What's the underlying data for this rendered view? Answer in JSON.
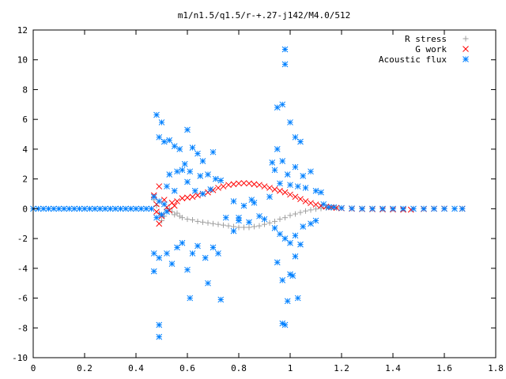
{
  "chart_data": {
    "type": "scatter",
    "title": "m1/n1.5/q1.5/r-+.27-j142/M4.0/512",
    "xlabel": "",
    "ylabel": "",
    "xlim": [
      0,
      1.8
    ],
    "ylim": [
      -10,
      12
    ],
    "xticks": [
      0,
      0.2,
      0.4,
      0.6,
      0.8,
      1,
      1.2,
      1.4,
      1.6,
      1.8
    ],
    "xtick_labels": [
      "0",
      "0.2",
      "0.4",
      "0.6",
      "0.8",
      "1",
      "1.2",
      "1.4",
      "1.6",
      "1.8"
    ],
    "yticks": [
      -10,
      -8,
      -6,
      -4,
      -2,
      0,
      2,
      4,
      6,
      8,
      10,
      12
    ],
    "ytick_labels": [
      "-10",
      "-8",
      "-6",
      "-4",
      "-2",
      "0",
      "2",
      "4",
      "6",
      "8",
      "10",
      "12"
    ],
    "grid": false,
    "legend_position": "top-right",
    "series": [
      {
        "name": "R stress",
        "marker": "plus",
        "color": "#a0a0a0",
        "points": [
          [
            0.47,
            0.6
          ],
          [
            0.48,
            0.2
          ],
          [
            0.49,
            -0.3
          ],
          [
            0.5,
            -0.8
          ],
          [
            0.51,
            -0.5
          ],
          [
            0.52,
            -0.1
          ],
          [
            0.53,
            0.0
          ],
          [
            0.54,
            -0.2
          ],
          [
            0.55,
            -0.4
          ],
          [
            0.56,
            -0.3
          ],
          [
            0.57,
            -0.5
          ],
          [
            0.58,
            -0.6
          ],
          [
            0.6,
            -0.7
          ],
          [
            0.62,
            -0.75
          ],
          [
            0.64,
            -0.85
          ],
          [
            0.66,
            -0.9
          ],
          [
            0.68,
            -0.95
          ],
          [
            0.7,
            -1.0
          ],
          [
            0.72,
            -1.05
          ],
          [
            0.74,
            -1.1
          ],
          [
            0.76,
            -1.15
          ],
          [
            0.78,
            -1.2
          ],
          [
            0.8,
            -1.25
          ],
          [
            0.82,
            -1.25
          ],
          [
            0.84,
            -1.25
          ],
          [
            0.86,
            -1.2
          ],
          [
            0.88,
            -1.15
          ],
          [
            0.9,
            -1.05
          ],
          [
            0.92,
            -0.95
          ],
          [
            0.94,
            -0.85
          ],
          [
            0.96,
            -0.7
          ],
          [
            0.98,
            -0.6
          ],
          [
            1.0,
            -0.45
          ],
          [
            1.02,
            -0.35
          ],
          [
            1.04,
            -0.25
          ],
          [
            1.06,
            -0.15
          ],
          [
            1.08,
            -0.08
          ],
          [
            1.1,
            -0.02
          ],
          [
            1.12,
            0.02
          ],
          [
            1.14,
            0.05
          ],
          [
            1.16,
            0.06
          ],
          [
            1.18,
            0.06
          ],
          [
            1.2,
            0.05
          ],
          [
            1.24,
            0.03
          ],
          [
            1.28,
            0.02
          ],
          [
            1.32,
            0.01
          ],
          [
            1.36,
            0.0
          ],
          [
            1.4,
            -0.01
          ],
          [
            1.44,
            -0.01
          ],
          [
            1.48,
            0.0
          ],
          [
            1.52,
            0.01
          ],
          [
            1.56,
            0.02
          ],
          [
            1.6,
            0.02
          ],
          [
            1.64,
            0.01
          ],
          [
            1.67,
            0.0
          ]
        ]
      },
      {
        "name": "G work",
        "marker": "cross",
        "color": "#ff0000",
        "points": [
          [
            0.47,
            0.9
          ],
          [
            0.48,
            0.3
          ],
          [
            0.48,
            -0.2
          ],
          [
            0.49,
            1.5
          ],
          [
            0.49,
            -1.0
          ],
          [
            0.5,
            -0.5
          ],
          [
            0.51,
            0.6
          ],
          [
            0.52,
            0.1
          ],
          [
            0.53,
            -0.1
          ],
          [
            0.54,
            0.4
          ],
          [
            0.55,
            0.2
          ],
          [
            0.56,
            0.5
          ],
          [
            0.58,
            0.7
          ],
          [
            0.6,
            0.75
          ],
          [
            0.62,
            0.8
          ],
          [
            0.64,
            0.9
          ],
          [
            0.66,
            1.0
          ],
          [
            0.68,
            1.1
          ],
          [
            0.7,
            1.25
          ],
          [
            0.72,
            1.4
          ],
          [
            0.74,
            1.5
          ],
          [
            0.76,
            1.6
          ],
          [
            0.78,
            1.65
          ],
          [
            0.8,
            1.7
          ],
          [
            0.82,
            1.72
          ],
          [
            0.84,
            1.7
          ],
          [
            0.86,
            1.65
          ],
          [
            0.88,
            1.6
          ],
          [
            0.9,
            1.5
          ],
          [
            0.92,
            1.4
          ],
          [
            0.94,
            1.3
          ],
          [
            0.96,
            1.2
          ],
          [
            0.98,
            1.1
          ],
          [
            1.0,
            0.95
          ],
          [
            1.02,
            0.8
          ],
          [
            1.04,
            0.65
          ],
          [
            1.06,
            0.5
          ],
          [
            1.08,
            0.38
          ],
          [
            1.1,
            0.28
          ],
          [
            1.12,
            0.2
          ],
          [
            1.14,
            0.14
          ],
          [
            1.16,
            0.1
          ],
          [
            1.18,
            0.06
          ],
          [
            1.2,
            0.03
          ],
          [
            1.24,
            0.0
          ],
          [
            1.28,
            -0.02
          ],
          [
            1.32,
            -0.03
          ],
          [
            1.36,
            -0.04
          ],
          [
            1.4,
            -0.05
          ],
          [
            1.44,
            -0.06
          ],
          [
            1.47,
            -0.06
          ],
          [
            1.52,
            -0.02
          ],
          [
            1.56,
            0.0
          ],
          [
            1.6,
            0.01
          ],
          [
            1.67,
            0.0
          ]
        ]
      },
      {
        "name": "Acoustic flux",
        "marker": "star",
        "color": "#0080ff",
        "points": [
          [
            0.0,
            0.0
          ],
          [
            0.02,
            0.0
          ],
          [
            0.04,
            0.0
          ],
          [
            0.06,
            0.0
          ],
          [
            0.08,
            0.0
          ],
          [
            0.1,
            0.0
          ],
          [
            0.12,
            0.0
          ],
          [
            0.14,
            0.0
          ],
          [
            0.16,
            0.0
          ],
          [
            0.18,
            0.0
          ],
          [
            0.2,
            0.0
          ],
          [
            0.22,
            0.0
          ],
          [
            0.24,
            0.0
          ],
          [
            0.26,
            0.0
          ],
          [
            0.28,
            0.0
          ],
          [
            0.3,
            0.0
          ],
          [
            0.32,
            0.0
          ],
          [
            0.34,
            0.0
          ],
          [
            0.36,
            0.0
          ],
          [
            0.38,
            0.0
          ],
          [
            0.4,
            0.0
          ],
          [
            0.42,
            0.0
          ],
          [
            0.44,
            0.0
          ],
          [
            0.46,
            0.0
          ],
          [
            0.48,
            6.3
          ],
          [
            0.5,
            5.8
          ],
          [
            0.49,
            4.8
          ],
          [
            0.51,
            4.5
          ],
          [
            0.53,
            4.6
          ],
          [
            0.55,
            4.2
          ],
          [
            0.57,
            4.0
          ],
          [
            0.6,
            5.3
          ],
          [
            0.62,
            4.1
          ],
          [
            0.64,
            3.7
          ],
          [
            0.59,
            3.0
          ],
          [
            0.56,
            2.5
          ],
          [
            0.53,
            2.3
          ],
          [
            0.58,
            2.6
          ],
          [
            0.61,
            2.5
          ],
          [
            0.65,
            2.2
          ],
          [
            0.68,
            2.3
          ],
          [
            0.66,
            3.2
          ],
          [
            0.71,
            2.0
          ],
          [
            0.73,
            1.9
          ],
          [
            0.7,
            3.8
          ],
          [
            0.52,
            1.5
          ],
          [
            0.55,
            1.2
          ],
          [
            0.6,
            1.8
          ],
          [
            0.63,
            1.2
          ],
          [
            0.66,
            1.0
          ],
          [
            0.69,
            1.3
          ],
          [
            0.47,
            0.8
          ],
          [
            0.48,
            -0.6
          ],
          [
            0.49,
            0.5
          ],
          [
            0.5,
            -0.4
          ],
          [
            0.51,
            0.3
          ],
          [
            0.52,
            -0.2
          ],
          [
            0.47,
            -3.0
          ],
          [
            0.47,
            -4.2
          ],
          [
            0.49,
            -3.3
          ],
          [
            0.52,
            -3.0
          ],
          [
            0.54,
            -3.7
          ],
          [
            0.56,
            -2.6
          ],
          [
            0.58,
            -2.3
          ],
          [
            0.6,
            -4.1
          ],
          [
            0.62,
            -3.0
          ],
          [
            0.64,
            -2.5
          ],
          [
            0.67,
            -3.3
          ],
          [
            0.7,
            -2.6
          ],
          [
            0.72,
            -3.0
          ],
          [
            0.68,
            -5.0
          ],
          [
            0.61,
            -6.0
          ],
          [
            0.73,
            -6.1
          ],
          [
            0.49,
            -7.8
          ],
          [
            0.49,
            -8.6
          ],
          [
            0.75,
            -0.6
          ],
          [
            0.78,
            0.5
          ],
          [
            0.8,
            -0.8
          ],
          [
            0.82,
            0.2
          ],
          [
            0.84,
            -0.9
          ],
          [
            0.86,
            0.4
          ],
          [
            0.88,
            -0.5
          ],
          [
            0.9,
            -0.7
          ],
          [
            0.92,
            0.8
          ],
          [
            0.78,
            -1.5
          ],
          [
            0.85,
            0.6
          ],
          [
            0.8,
            -0.6
          ],
          [
            0.95,
            4.0
          ],
          [
            0.97,
            3.2
          ],
          [
            0.94,
            2.6
          ],
          [
            0.93,
            3.1
          ],
          [
            0.99,
            2.3
          ],
          [
            1.02,
            2.8
          ],
          [
            1.05,
            2.2
          ],
          [
            1.08,
            2.5
          ],
          [
            0.96,
            1.7
          ],
          [
            1.0,
            1.6
          ],
          [
            1.03,
            1.5
          ],
          [
            1.06,
            1.4
          ],
          [
            1.1,
            1.2
          ],
          [
            1.12,
            1.1
          ],
          [
            0.95,
            6.8
          ],
          [
            0.97,
            7.0
          ],
          [
            0.98,
            10.7
          ],
          [
            0.98,
            9.7
          ],
          [
            1.0,
            5.8
          ],
          [
            1.02,
            4.8
          ],
          [
            1.04,
            4.5
          ],
          [
            0.94,
            -1.3
          ],
          [
            0.96,
            -1.7
          ],
          [
            0.98,
            -2.0
          ],
          [
            1.0,
            -2.3
          ],
          [
            1.02,
            -1.8
          ],
          [
            1.05,
            -1.2
          ],
          [
            1.08,
            -1.0
          ],
          [
            1.1,
            -0.8
          ],
          [
            0.95,
            -3.6
          ],
          [
            0.97,
            -4.8
          ],
          [
            1.0,
            -4.4
          ],
          [
            1.02,
            -3.2
          ],
          [
            1.04,
            -2.4
          ],
          [
            0.99,
            -6.2
          ],
          [
            0.97,
            -7.7
          ],
          [
            0.98,
            -7.8
          ],
          [
            1.03,
            -6.0
          ],
          [
            1.01,
            -4.5
          ],
          [
            1.13,
            0.3
          ],
          [
            1.15,
            0.1
          ],
          [
            1.17,
            0.1
          ],
          [
            1.2,
            0.05
          ],
          [
            1.24,
            0.02
          ],
          [
            1.28,
            0.0
          ],
          [
            1.32,
            0.0
          ],
          [
            1.36,
            0.0
          ],
          [
            1.4,
            0.0
          ],
          [
            1.44,
            0.0
          ],
          [
            1.48,
            0.0
          ],
          [
            1.52,
            0.0
          ],
          [
            1.56,
            0.0
          ],
          [
            1.6,
            0.0
          ],
          [
            1.64,
            0.0
          ],
          [
            1.67,
            0.0
          ]
        ]
      }
    ]
  }
}
